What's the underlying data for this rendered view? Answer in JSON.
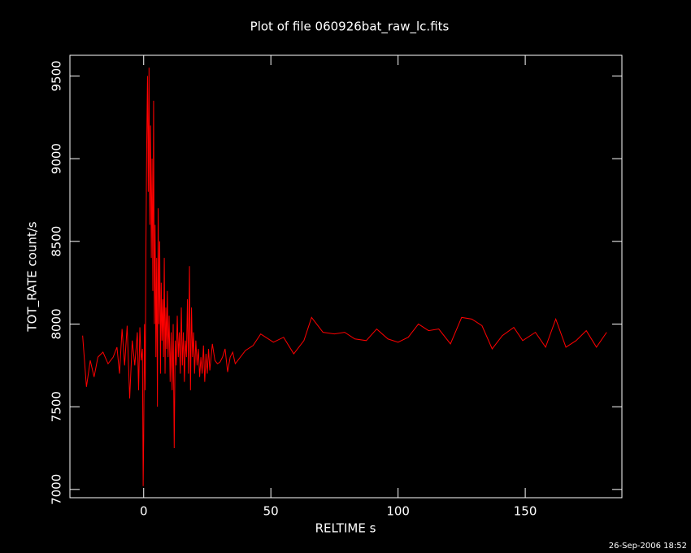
{
  "chart_data": {
    "type": "line",
    "title": "Plot of file 060926bat_raw_lc.fits",
    "x_label": "RELTIME  s",
    "y_label": "TOT_RATE  count/s",
    "footer": "26-Sep-2006 18:52",
    "xlim": [
      -29,
      188
    ],
    "ylim": [
      6950,
      9625
    ],
    "xticks": [
      0,
      50,
      100,
      150
    ],
    "yticks": [
      7000,
      7500,
      8000,
      8500,
      9000,
      9500
    ],
    "x": [
      -24,
      -22.5,
      -21,
      -19.5,
      -18,
      -16,
      -14,
      -12,
      -10.5,
      -9.5,
      -8.5,
      -7.5,
      -6.5,
      -5.5,
      -4.5,
      -3.5,
      -2.5,
      -2,
      -1.5,
      -1,
      -0.5,
      -0.2,
      0,
      0.3,
      0.6,
      0.9,
      1.2,
      1.5,
      1.8,
      2.1,
      2.4,
      2.7,
      3,
      3.3,
      3.6,
      3.9,
      4.2,
      4.5,
      4.8,
      5.1,
      5.4,
      5.7,
      6,
      6.3,
      6.6,
      6.9,
      7.2,
      7.5,
      7.8,
      8.1,
      8.4,
      8.7,
      9,
      9.3,
      9.6,
      10,
      10.4,
      10.8,
      11.2,
      11.6,
      12,
      12.4,
      12.8,
      13.2,
      13.6,
      14,
      14.4,
      14.8,
      15.2,
      15.6,
      16,
      16.4,
      16.8,
      17.2,
      17.6,
      18,
      18.4,
      18.8,
      19.2,
      19.6,
      20,
      20.5,
      21,
      21.5,
      22,
      22.5,
      23,
      23.5,
      24,
      24.5,
      25,
      25.5,
      26,
      27,
      28,
      29,
      30,
      31,
      32,
      33,
      34,
      35,
      36,
      38,
      40,
      43,
      46,
      51,
      55,
      59,
      63,
      66,
      70.5,
      75,
      79,
      83,
      87.5,
      91.6,
      96,
      100,
      104,
      108,
      112,
      116,
      120.6,
      125,
      129,
      133,
      137,
      141,
      145.5,
      149,
      154,
      158,
      162,
      166,
      170,
      174,
      178,
      182
    ],
    "series": [
      {
        "color": "#ff0000",
        "values": [
          7930,
          7620,
          7780,
          7680,
          7800,
          7830,
          7760,
          7800,
          7860,
          7700,
          7970,
          7750,
          7990,
          7550,
          7900,
          7750,
          7950,
          7600,
          7980,
          7780,
          7850,
          7020,
          7300,
          8000,
          7600,
          8500,
          9100,
          9500,
          8800,
          9550,
          8600,
          9200,
          8400,
          9000,
          8200,
          9350,
          8000,
          8600,
          7800,
          8400,
          7500,
          8700,
          8000,
          8500,
          7700,
          8250,
          7900,
          8150,
          7800,
          8400,
          7700,
          8100,
          7850,
          8200,
          7800,
          8050,
          7650,
          7950,
          7600,
          8000,
          7250,
          7900,
          7750,
          8050,
          7800,
          7950,
          7700,
          8100,
          7750,
          7950,
          7650,
          7900,
          7800,
          8150,
          7700,
          8350,
          7600,
          8100,
          7800,
          7950,
          7700,
          7900,
          7750,
          7850,
          7680,
          7800,
          7700,
          7870,
          7650,
          7820,
          7700,
          7850,
          7720,
          7880,
          7780,
          7760,
          7770,
          7800,
          7850,
          7710,
          7800,
          7830,
          7760,
          7800,
          7840,
          7870,
          7940,
          7890,
          7920,
          7820,
          7900,
          8040,
          7950,
          7940,
          7950,
          7910,
          7900,
          7970,
          7910,
          7890,
          7920,
          8000,
          7960,
          7970,
          7880,
          8040,
          8030,
          7990,
          7850,
          7930,
          7980,
          7900,
          7950,
          7860,
          8030,
          7860,
          7900,
          7960,
          7860,
          7950
        ]
      }
    ]
  }
}
